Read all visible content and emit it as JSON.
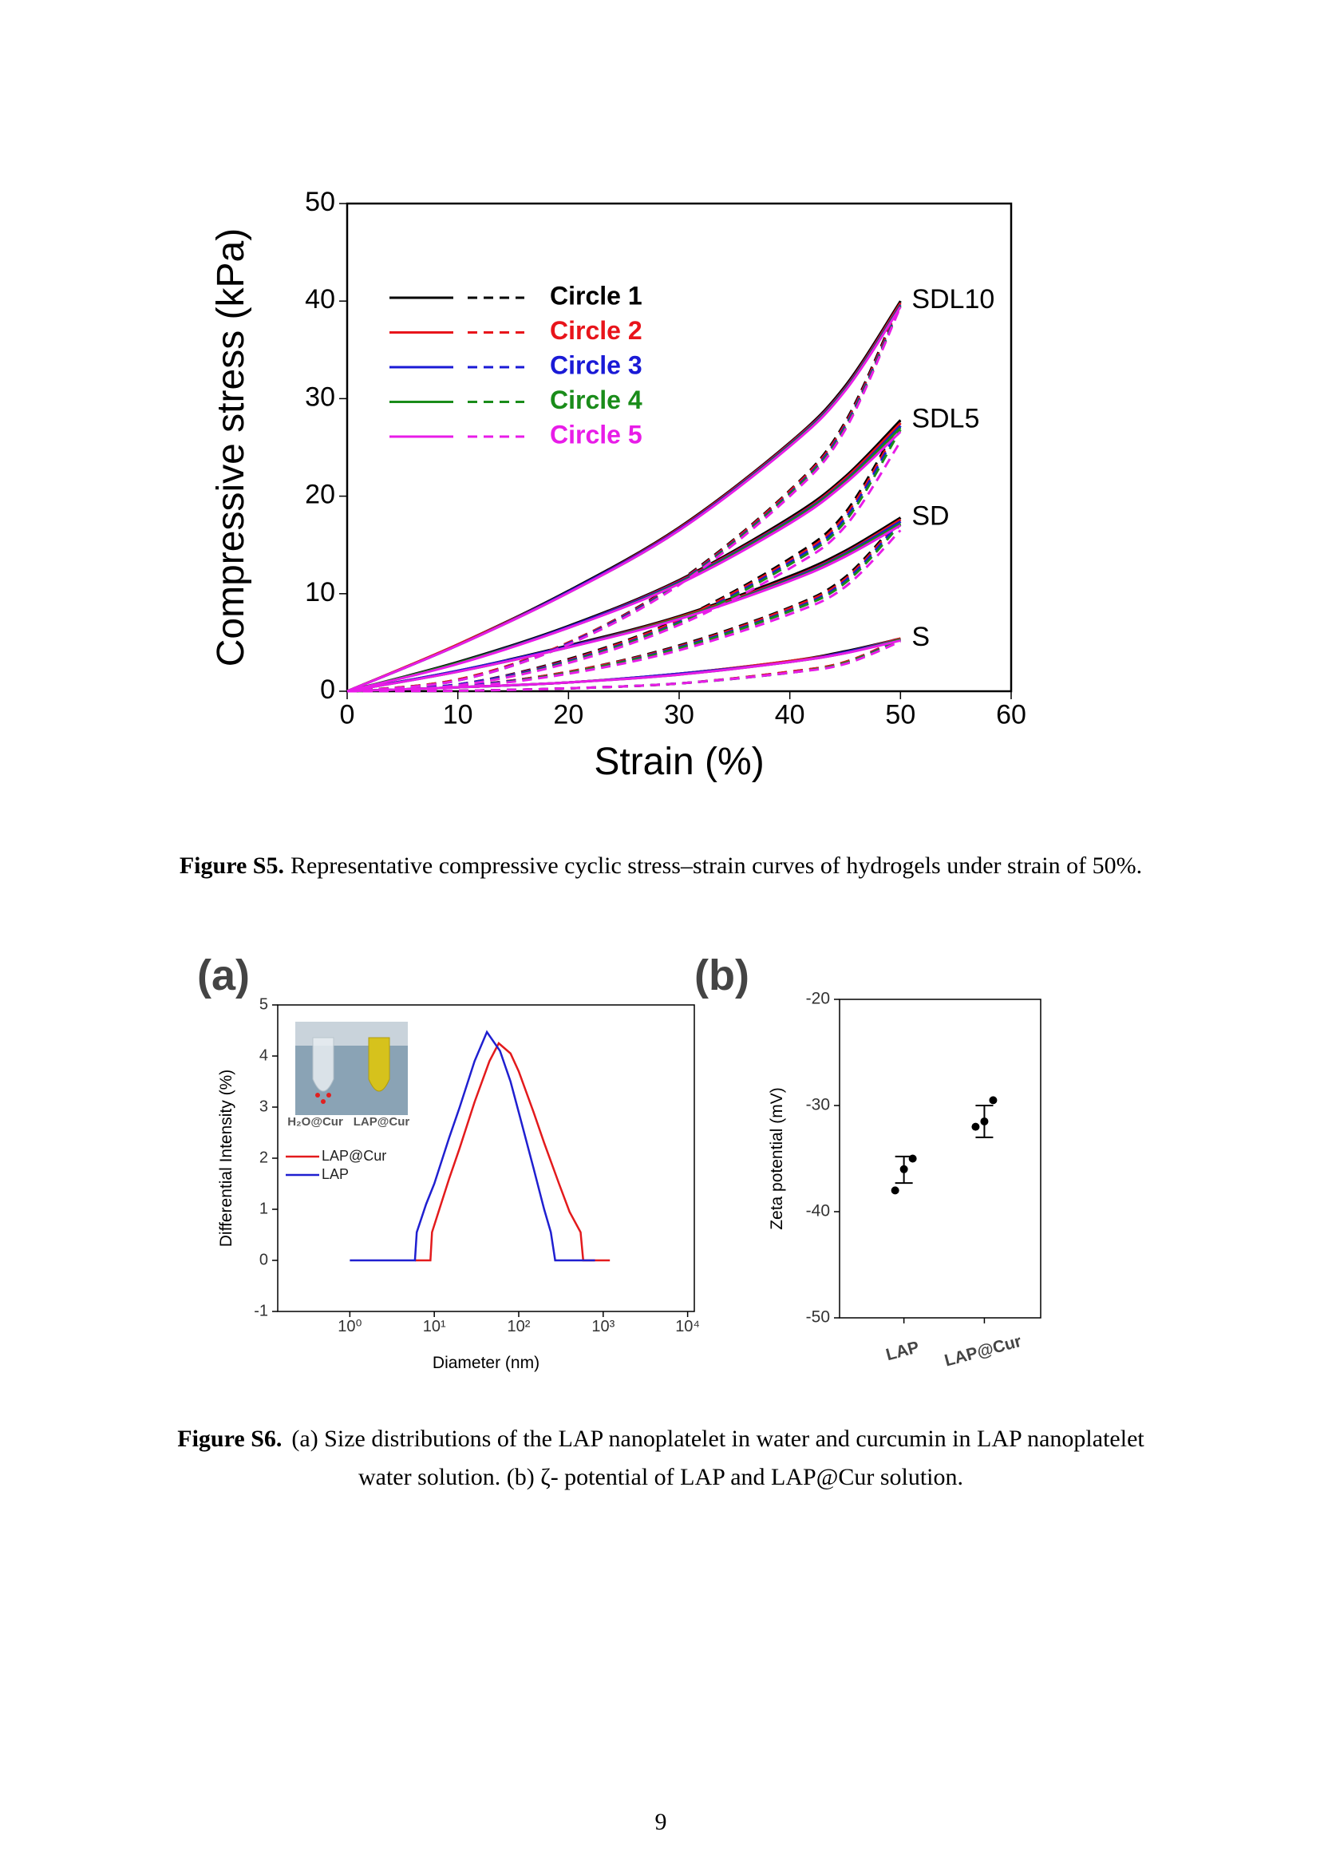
{
  "chart_data": [
    {
      "type": "line",
      "y_label": "Compressive stress (kPa)",
      "x_label": "Strain (%)",
      "x": [
        0,
        10,
        20,
        30,
        40,
        45,
        50
      ],
      "xlim": [
        0,
        60
      ],
      "xticks": [
        0,
        10,
        20,
        30,
        40,
        50,
        60
      ],
      "ylim": [
        0,
        50
      ],
      "yticks": [
        0,
        10,
        20,
        30,
        40,
        50
      ],
      "annotations": [
        "SDL10",
        "SDL5",
        "SD",
        "S"
      ],
      "series": [
        {
          "name": "Circle 1",
          "color": "#000000",
          "loading": [
            [
              0,
              4.8,
              10.3,
              16.8,
              25.5,
              31.3,
              40.0
            ],
            [
              0,
              3.0,
              6.7,
              11.4,
              17.8,
              22.0,
              27.8
            ],
            [
              0,
              2.1,
              4.7,
              7.7,
              11.8,
              14.4,
              17.8
            ],
            [
              0,
              0.4,
              0.9,
              1.8,
              3.1,
              4.1,
              5.4
            ]
          ],
          "unloading": [
            [
              0,
              1.2,
              5.0,
              11.3,
              20.6,
              27.6,
              40.0
            ],
            [
              0,
              0.7,
              3.3,
              7.4,
              13.6,
              18.3,
              27.8
            ],
            [
              0,
              0.5,
              2.0,
              4.7,
              8.6,
              11.7,
              17.8
            ],
            [
              0,
              0.05,
              0.3,
              0.8,
              2.0,
              3.0,
              5.4
            ]
          ]
        },
        {
          "name": "Circle 2",
          "color": "#e8141b",
          "loading": [
            [
              0,
              4.8,
              10.2,
              16.7,
              25.4,
              31.1,
              39.8
            ],
            [
              0,
              2.9,
              6.6,
              11.3,
              17.6,
              21.8,
              27.5
            ],
            [
              0,
              2.1,
              4.6,
              7.6,
              11.6,
              14.2,
              17.6
            ],
            [
              0,
              0.4,
              0.9,
              1.8,
              3.1,
              4.0,
              5.4
            ]
          ],
          "unloading": [
            [
              0,
              1.2,
              5.0,
              11.2,
              20.5,
              27.4,
              39.8
            ],
            [
              0,
              0.7,
              3.2,
              7.3,
              13.4,
              18.0,
              27.5
            ],
            [
              0,
              0.5,
              2.0,
              4.6,
              8.5,
              11.5,
              17.6
            ],
            [
              0,
              0.05,
              0.3,
              0.8,
              2.0,
              3.0,
              5.4
            ]
          ]
        },
        {
          "name": "Circle 3",
          "color": "#1a1ad6",
          "loading": [
            [
              0,
              4.7,
              10.2,
              16.6,
              25.3,
              31.0,
              39.6
            ],
            [
              0,
              2.9,
              6.6,
              11.2,
              17.5,
              21.6,
              27.2
            ],
            [
              0,
              2.1,
              4.6,
              7.5,
              11.5,
              14.1,
              17.4
            ],
            [
              0,
              0.4,
              0.9,
              1.8,
              3.0,
              4.0,
              5.3
            ]
          ],
          "unloading": [
            [
              0,
              1.1,
              4.9,
              11.1,
              20.3,
              27.2,
              39.6
            ],
            [
              0,
              0.7,
              3.1,
              7.1,
              13.2,
              17.7,
              27.2
            ],
            [
              0,
              0.5,
              1.9,
              4.5,
              8.3,
              11.3,
              17.4
            ],
            [
              0,
              0.05,
              0.3,
              0.8,
              1.9,
              2.9,
              5.3
            ]
          ]
        },
        {
          "name": "Circle 4",
          "color": "#1a8c1a",
          "loading": [
            [
              0,
              4.7,
              10.1,
              16.5,
              25.2,
              30.9,
              39.5
            ],
            [
              0,
              2.9,
              6.5,
              11.1,
              17.4,
              21.5,
              27.0
            ],
            [
              0,
              2.0,
              4.5,
              7.5,
              11.4,
              14.0,
              17.2
            ],
            [
              0,
              0.4,
              0.9,
              1.7,
              3.0,
              3.9,
              5.3
            ]
          ],
          "unloading": [
            [
              0,
              1.1,
              4.8,
              11.0,
              20.2,
              27.0,
              39.5
            ],
            [
              0,
              0.6,
              3.0,
              7.0,
              13.0,
              17.4,
              26.8
            ],
            [
              0,
              0.4,
              1.9,
              4.4,
              8.2,
              11.1,
              17.1
            ],
            [
              0,
              0.05,
              0.3,
              0.8,
              1.9,
              2.9,
              5.2
            ]
          ]
        },
        {
          "name": "Circle 5",
          "color": "#e81ce8",
          "loading": [
            [
              0,
              4.7,
              10.1,
              16.5,
              25.1,
              30.8,
              39.4
            ],
            [
              0,
              2.8,
              6.5,
              11.0,
              17.2,
              21.3,
              26.6
            ],
            [
              0,
              2.0,
              4.5,
              7.4,
              11.3,
              13.8,
              17.0
            ],
            [
              0,
              0.4,
              0.9,
              1.7,
              3.0,
              3.9,
              5.2
            ]
          ],
          "unloading": [
            [
              0,
              1.1,
              4.8,
              10.9,
              20.0,
              26.8,
              39.4
            ],
            [
              0,
              0.6,
              2.9,
              6.8,
              12.6,
              16.9,
              25.6
            ],
            [
              0,
              0.4,
              1.8,
              4.2,
              7.9,
              10.7,
              16.5
            ],
            [
              0,
              0.05,
              0.3,
              0.8,
              1.9,
              2.8,
              5.1
            ]
          ]
        }
      ]
    },
    {
      "type": "line",
      "panel": "(a)",
      "log_x": true,
      "y_label": "Differential Intensity (%)",
      "x_label": "Diameter (nm)",
      "xlim": [
        0.14,
        12000
      ],
      "xticks": [
        {
          "value": 1,
          "label": "10⁰"
        },
        {
          "value": 10,
          "label": "10¹"
        },
        {
          "value": 100,
          "label": "10²"
        },
        {
          "value": 1000,
          "label": "10³"
        },
        {
          "value": 10000,
          "label": "10⁴"
        }
      ],
      "ylim": [
        -1,
        5
      ],
      "yticks": [
        -1,
        0,
        1,
        2,
        3,
        4,
        5
      ],
      "inset_labels": [
        "H₂O@Cur",
        "LAP@Cur"
      ],
      "series": [
        {
          "name": "LAP@Cur",
          "color": "#e31a1c",
          "x": [
            5.9,
            9.0,
            9.4,
            12,
            15,
            20,
            30,
            45,
            58,
            80,
            100,
            150,
            200,
            300,
            400,
            540,
            580,
            1200
          ],
          "values": [
            0,
            0,
            0.55,
            1.1,
            1.6,
            2.2,
            3.1,
            3.9,
            4.25,
            4.05,
            3.7,
            2.9,
            2.3,
            1.5,
            0.95,
            0.55,
            0,
            0
          ]
        },
        {
          "name": "LAP",
          "color": "#1f1fd0",
          "x": [
            1,
            5.9,
            6.2,
            8,
            10,
            15,
            20,
            30,
            42,
            60,
            80,
            100,
            150,
            200,
            240,
            270,
            800
          ],
          "values": [
            0,
            0,
            0.55,
            1.1,
            1.5,
            2.4,
            3.0,
            3.9,
            4.47,
            4.1,
            3.5,
            2.9,
            1.8,
            1.0,
            0.55,
            0,
            0
          ]
        }
      ]
    },
    {
      "type": "scatter",
      "panel": "(b)",
      "y_label": "Zeta potential (mV)",
      "categories": [
        "LAP",
        "LAP@Cur"
      ],
      "ylim": [
        -50,
        -20
      ],
      "yticks": [
        -50,
        -40,
        -30,
        -20
      ],
      "points": [
        [
          -38,
          -36,
          -35
        ],
        [
          -32,
          -31.5,
          -29.5
        ]
      ],
      "means": [
        -36.05,
        -31.5
      ],
      "errors": [
        1.25,
        1.5
      ]
    }
  ],
  "captions": [
    {
      "label": "Figure S5.",
      "lines": [
        "Representative compressive cyclic stress–strain curves of hydrogels under strain of 50%."
      ]
    },
    {
      "label": "Figure S6.",
      "lines": [
        "(a) Size distributions of the LAP nanoplatelet in water and curcumin in LAP nanoplatelet",
        "water solution. (b) ζ- potential of LAP and LAP@Cur solution."
      ]
    }
  ],
  "page_number": "9"
}
